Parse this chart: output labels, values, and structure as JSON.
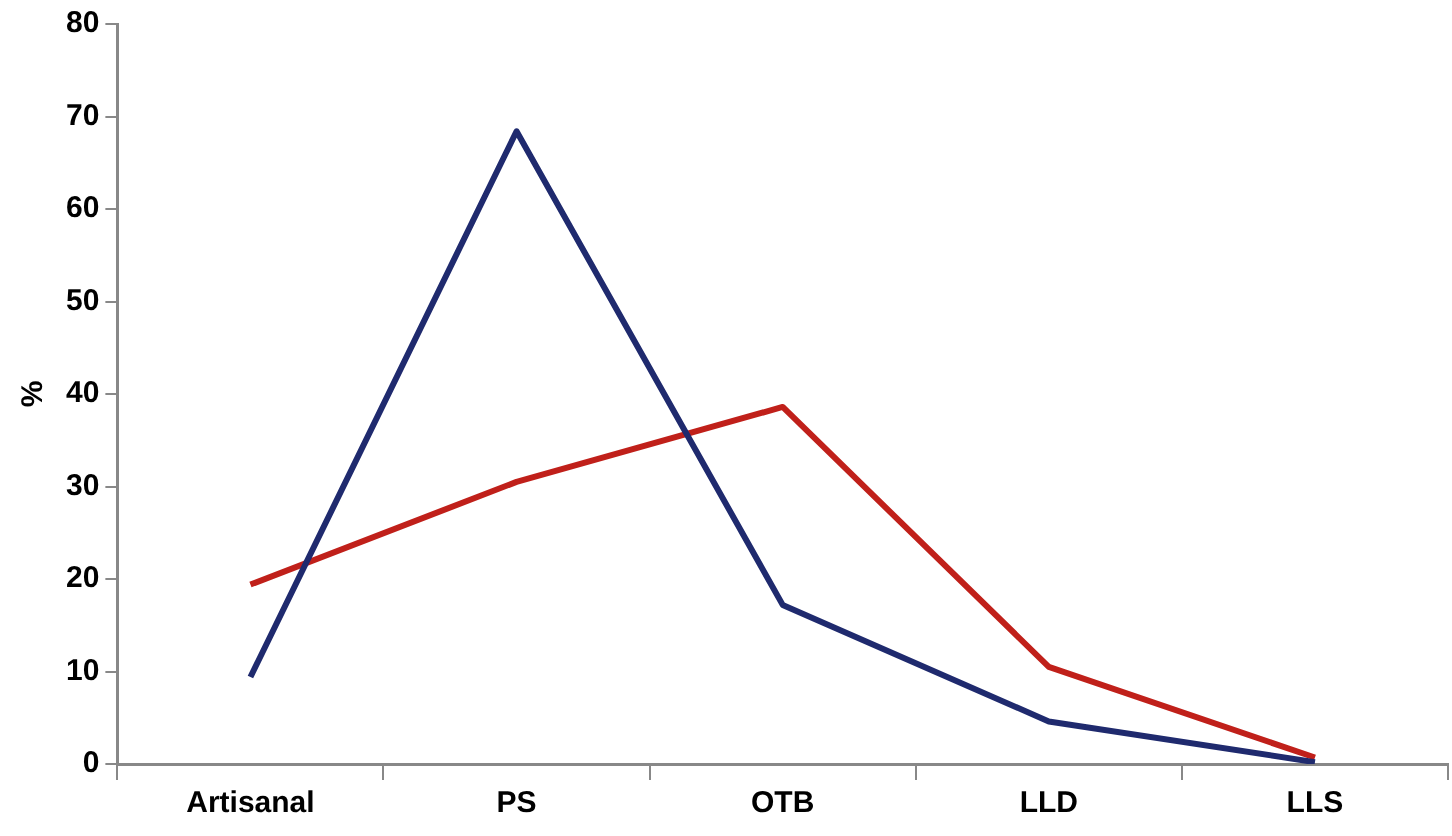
{
  "chart_data": {
    "type": "line",
    "ylabel": "%",
    "categories": [
      "Artisanal",
      "PS",
      "OTB",
      "LLD",
      "LLS"
    ],
    "series": [
      {
        "color": "#1f2a6e",
        "values": [
          9.4,
          68.4,
          17.2,
          4.6,
          0.2
        ]
      },
      {
        "color": "#c0201a",
        "values": [
          19.4,
          30.5,
          38.6,
          10.5,
          0.7
        ]
      }
    ],
    "ylim": [
      0,
      80
    ],
    "yticks": [
      0,
      10,
      20,
      30,
      40,
      50,
      60,
      70,
      80
    ],
    "grid": false,
    "legend": false,
    "marker": "none",
    "line_style": "solid"
  }
}
